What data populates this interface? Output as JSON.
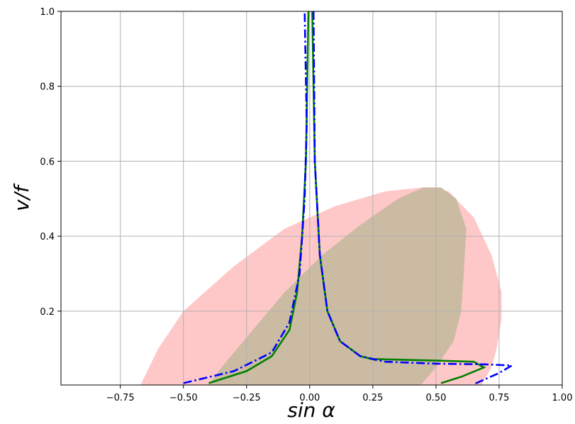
{
  "chart_data": {
    "type": "line",
    "xlabel": "sin α",
    "ylabel": "v/f",
    "xlim": [
      -0.985,
      1.0
    ],
    "ylim": [
      0.003,
      1.0
    ],
    "xticks": [
      {
        "value": -0.75,
        "label": "−0.75"
      },
      {
        "value": -0.5,
        "label": "−0.50"
      },
      {
        "value": -0.25,
        "label": "−0.25"
      },
      {
        "value": 0,
        "label": "0.00"
      },
      {
        "value": 0.25,
        "label": "0.25"
      },
      {
        "value": 0.5,
        "label": "0.50"
      },
      {
        "value": 0.75,
        "label": "0.75"
      },
      {
        "value": 1,
        "label": "1.00"
      }
    ],
    "yticks": [
      0.2,
      0.4,
      0.6,
      0.8,
      {
        "value": 1,
        "label": "1.0"
      }
    ],
    "grid": true,
    "series": [
      {
        "color": "#ffc8c8",
        "fill": true,
        "x": [
          -0.67,
          -0.6,
          -0.5,
          -0.3,
          -0.1,
          0.1,
          0.3,
          0.45,
          0.55,
          0.65,
          0.72,
          0.76,
          0.76,
          0.74,
          0.72,
          0.68
        ],
        "y": [
          0.003,
          0.1,
          0.2,
          0.32,
          0.42,
          0.48,
          0.52,
          0.53,
          0.52,
          0.45,
          0.35,
          0.25,
          0.18,
          0.1,
          0.05,
          0.003
        ]
      },
      {
        "color": "#cbbba3",
        "fill": true,
        "x": [
          -0.4,
          -0.35,
          -0.25,
          -0.1,
          0.05,
          0.2,
          0.35,
          0.45,
          0.52,
          0.58,
          0.62,
          0.61,
          0.6,
          0.57,
          0.5,
          0.44
        ],
        "y": [
          0.003,
          0.05,
          0.13,
          0.25,
          0.35,
          0.43,
          0.5,
          0.53,
          0.53,
          0.5,
          0.42,
          0.3,
          0.2,
          0.12,
          0.05,
          0.003
        ]
      },
      {
        "color": "#008000",
        "fill": false,
        "style": "solid",
        "x": [
          -0.4,
          -0.25,
          -0.15,
          -0.08,
          -0.05,
          -0.03,
          -0.015,
          -0.005,
          null,
          0.01,
          0.02,
          0.04,
          0.07,
          0.12,
          0.2,
          0.26,
          0.26,
          0.5,
          0.65,
          0.69,
          0.6,
          0.52
        ],
        "y": [
          0.008,
          0.04,
          0.08,
          0.15,
          0.25,
          0.4,
          0.6,
          1.0,
          null,
          1.0,
          0.6,
          0.35,
          0.2,
          0.12,
          0.08,
          0.07,
          0.072,
          0.068,
          0.065,
          0.05,
          0.025,
          0.008
        ]
      },
      {
        "color": "#0000ff",
        "fill": false,
        "style": "dashdot",
        "x": [
          -0.5,
          -0.3,
          -0.15,
          -0.08,
          -0.04,
          -0.02,
          -0.012,
          -0.02,
          null,
          0.015,
          0.02,
          0.04,
          0.07,
          0.12,
          0.2,
          0.3,
          0.5,
          0.7,
          0.8,
          0.75,
          0.65
        ],
        "y": [
          0.008,
          0.04,
          0.09,
          0.17,
          0.3,
          0.5,
          0.7,
          1.0,
          null,
          1.0,
          0.6,
          0.35,
          0.2,
          0.12,
          0.08,
          0.065,
          0.06,
          0.058,
          0.055,
          0.035,
          0.005
        ]
      }
    ]
  }
}
